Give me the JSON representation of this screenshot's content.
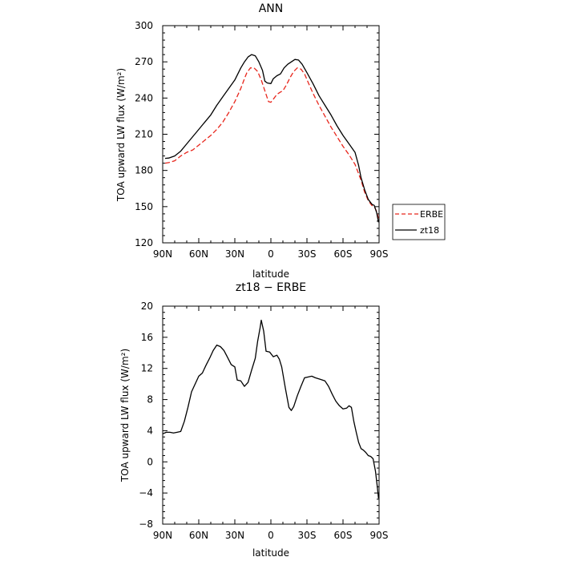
{
  "chart_data": [
    {
      "type": "line",
      "title": "ANN",
      "xlabel": "latitude",
      "ylabel": "TOA upward LW flux (W/m²)",
      "xlim": [
        90,
        -90
      ],
      "ylim": [
        120,
        300
      ],
      "x_ticks": [
        90,
        60,
        30,
        0,
        -30,
        -60,
        -90
      ],
      "x_tick_labels": [
        "90N",
        "60N",
        "30N",
        "0",
        "30S",
        "60S",
        "90S"
      ],
      "y_ticks": [
        120,
        150,
        180,
        210,
        240,
        270,
        300
      ],
      "y_tick_labels": [
        "120",
        "150",
        "180",
        "210",
        "240",
        "270",
        "300"
      ],
      "legend": {
        "placement": "right-outside",
        "entries": [
          "ERBE",
          "zt18"
        ]
      },
      "series": [
        {
          "name": "ERBE",
          "color": "#e8261c",
          "style": "dashed",
          "points": [
            [
              88,
              186
            ],
            [
              85,
              186.5
            ],
            [
              80,
              188
            ],
            [
              75,
              192
            ],
            [
              70,
              195
            ],
            [
              65,
              197
            ],
            [
              60,
              201
            ],
            [
              55,
              205
            ],
            [
              50,
              209
            ],
            [
              45,
              214
            ],
            [
              40,
              220
            ],
            [
              35,
              228
            ],
            [
              30,
              237
            ],
            [
              25,
              248
            ],
            [
              22,
              256
            ],
            [
              20,
              261
            ],
            [
              17,
              265
            ],
            [
              14,
              265
            ],
            [
              11,
              262
            ],
            [
              8,
              255
            ],
            [
              5,
              246
            ],
            [
              2,
              237
            ],
            [
              0,
              236.5
            ],
            [
              -2,
              239
            ],
            [
              -5,
              243
            ],
            [
              -8,
              245
            ],
            [
              -10,
              246
            ],
            [
              -13,
              251
            ],
            [
              -16,
              257
            ],
            [
              -19,
              262
            ],
            [
              -22,
              265
            ],
            [
              -25,
              264
            ],
            [
              -28,
              260
            ],
            [
              -31,
              253
            ],
            [
              -35,
              244
            ],
            [
              -40,
              234
            ],
            [
              -45,
              225
            ],
            [
              -50,
              216
            ],
            [
              -55,
              208
            ],
            [
              -60,
              200
            ],
            [
              -65,
              193
            ],
            [
              -70,
              185
            ],
            [
              -75,
              172
            ],
            [
              -78,
              162
            ],
            [
              -81,
              155
            ],
            [
              -84,
              151
            ],
            [
              -86,
              150
            ],
            [
              -88,
              146
            ],
            [
              -89.5,
              140
            ]
          ]
        },
        {
          "name": "zt18",
          "color": "#000000",
          "style": "solid",
          "points": [
            [
              88,
              190
            ],
            [
              85,
              190.3
            ],
            [
              80,
              192
            ],
            [
              75,
              196
            ],
            [
              70,
              202
            ],
            [
              65,
              208
            ],
            [
              60,
              214
            ],
            [
              55,
              220
            ],
            [
              50,
              226
            ],
            [
              45,
              234
            ],
            [
              40,
              241
            ],
            [
              35,
              248
            ],
            [
              30,
              255
            ],
            [
              25,
              265
            ],
            [
              22,
              270
            ],
            [
              19,
              274
            ],
            [
              16,
              276
            ],
            [
              13,
              275
            ],
            [
              10,
              270
            ],
            [
              7,
              263
            ],
            [
              5,
              254
            ],
            [
              3,
              252.5
            ],
            [
              0,
              252
            ],
            [
              -2,
              256
            ],
            [
              -5,
              258.5
            ],
            [
              -8,
              260
            ],
            [
              -11,
              265
            ],
            [
              -14,
              268
            ],
            [
              -17,
              270
            ],
            [
              -20,
              272
            ],
            [
              -23,
              271.5
            ],
            [
              -26,
              268
            ],
            [
              -30,
              261
            ],
            [
              -35,
              252
            ],
            [
              -40,
              242
            ],
            [
              -45,
              234
            ],
            [
              -50,
              226
            ],
            [
              -55,
              217
            ],
            [
              -60,
              209
            ],
            [
              -65,
              202
            ],
            [
              -70,
              195
            ],
            [
              -73,
              184
            ],
            [
              -75,
              174
            ],
            [
              -78,
              164
            ],
            [
              -81,
              156
            ],
            [
              -84,
              152
            ],
            [
              -86,
              151
            ],
            [
              -88,
              145
            ],
            [
              -89.5,
              137
            ]
          ]
        }
      ]
    },
    {
      "type": "line",
      "title": "zt18 − ERBE",
      "xlabel": "latitude",
      "ylabel": "TOA upward LW flux (W/m²)",
      "xlim": [
        90,
        -90
      ],
      "ylim": [
        -8,
        20
      ],
      "x_ticks": [
        90,
        60,
        30,
        0,
        -30,
        -60,
        -90
      ],
      "x_tick_labels": [
        "90N",
        "60N",
        "30N",
        "0",
        "30S",
        "60S",
        "90S"
      ],
      "y_ticks": [
        -8,
        -4,
        0,
        4,
        8,
        12,
        16,
        20
      ],
      "y_tick_labels": [
        "−8",
        "−4",
        "0",
        "4",
        "8",
        "12",
        "16",
        "20"
      ],
      "series": [
        {
          "color": "#000000",
          "style": "solid",
          "points": [
            [
              90,
              3.6
            ],
            [
              87,
              3.8
            ],
            [
              84,
              3.8
            ],
            [
              81,
              3.7
            ],
            [
              78,
              3.8
            ],
            [
              75,
              3.9
            ],
            [
              72,
              5.2
            ],
            [
              69,
              7.0
            ],
            [
              66,
              9.0
            ],
            [
              63,
              10.0
            ],
            [
              60,
              11.0
            ],
            [
              57,
              11.4
            ],
            [
              54,
              12.4
            ],
            [
              51,
              13.3
            ],
            [
              48,
              14.3
            ],
            [
              45,
              15.0
            ],
            [
              42,
              14.8
            ],
            [
              39,
              14.3
            ],
            [
              36,
              13.4
            ],
            [
              33,
              12.5
            ],
            [
              30,
              12.2
            ],
            [
              28,
              10.5
            ],
            [
              25,
              10.4
            ],
            [
              22,
              9.7
            ],
            [
              19,
              10.2
            ],
            [
              16,
              11.8
            ],
            [
              13,
              13.3
            ],
            [
              11,
              15.5
            ],
            [
              9,
              17.2
            ],
            [
              8,
              18.2
            ],
            [
              6,
              16.8
            ],
            [
              4,
              14.2
            ],
            [
              1,
              14.1
            ],
            [
              -2,
              13.5
            ],
            [
              -5,
              13.7
            ],
            [
              -7,
              13.2
            ],
            [
              -9,
              12.2
            ],
            [
              -12,
              9.5
            ],
            [
              -15,
              7.0
            ],
            [
              -17,
              6.6
            ],
            [
              -19,
              7.1
            ],
            [
              -22,
              8.5
            ],
            [
              -25,
              9.7
            ],
            [
              -28,
              10.8
            ],
            [
              -31,
              10.9
            ],
            [
              -34,
              11.0
            ],
            [
              -37,
              10.8
            ],
            [
              -41,
              10.6
            ],
            [
              -45,
              10.4
            ],
            [
              -48,
              9.7
            ],
            [
              -51,
              8.7
            ],
            [
              -54,
              7.8
            ],
            [
              -57,
              7.2
            ],
            [
              -60,
              6.8
            ],
            [
              -63,
              6.9
            ],
            [
              -65,
              7.2
            ],
            [
              -67,
              7.0
            ],
            [
              -69,
              5.2
            ],
            [
              -71,
              3.8
            ],
            [
              -73,
              2.5
            ],
            [
              -75,
              1.7
            ],
            [
              -77,
              1.5
            ],
            [
              -79,
              1.2
            ],
            [
              -81,
              0.8
            ],
            [
              -83,
              0.7
            ],
            [
              -85,
              0.4
            ],
            [
              -87,
              -1.2
            ],
            [
              -88.5,
              -3.2
            ],
            [
              -89.5,
              -4.7
            ]
          ]
        }
      ]
    }
  ]
}
